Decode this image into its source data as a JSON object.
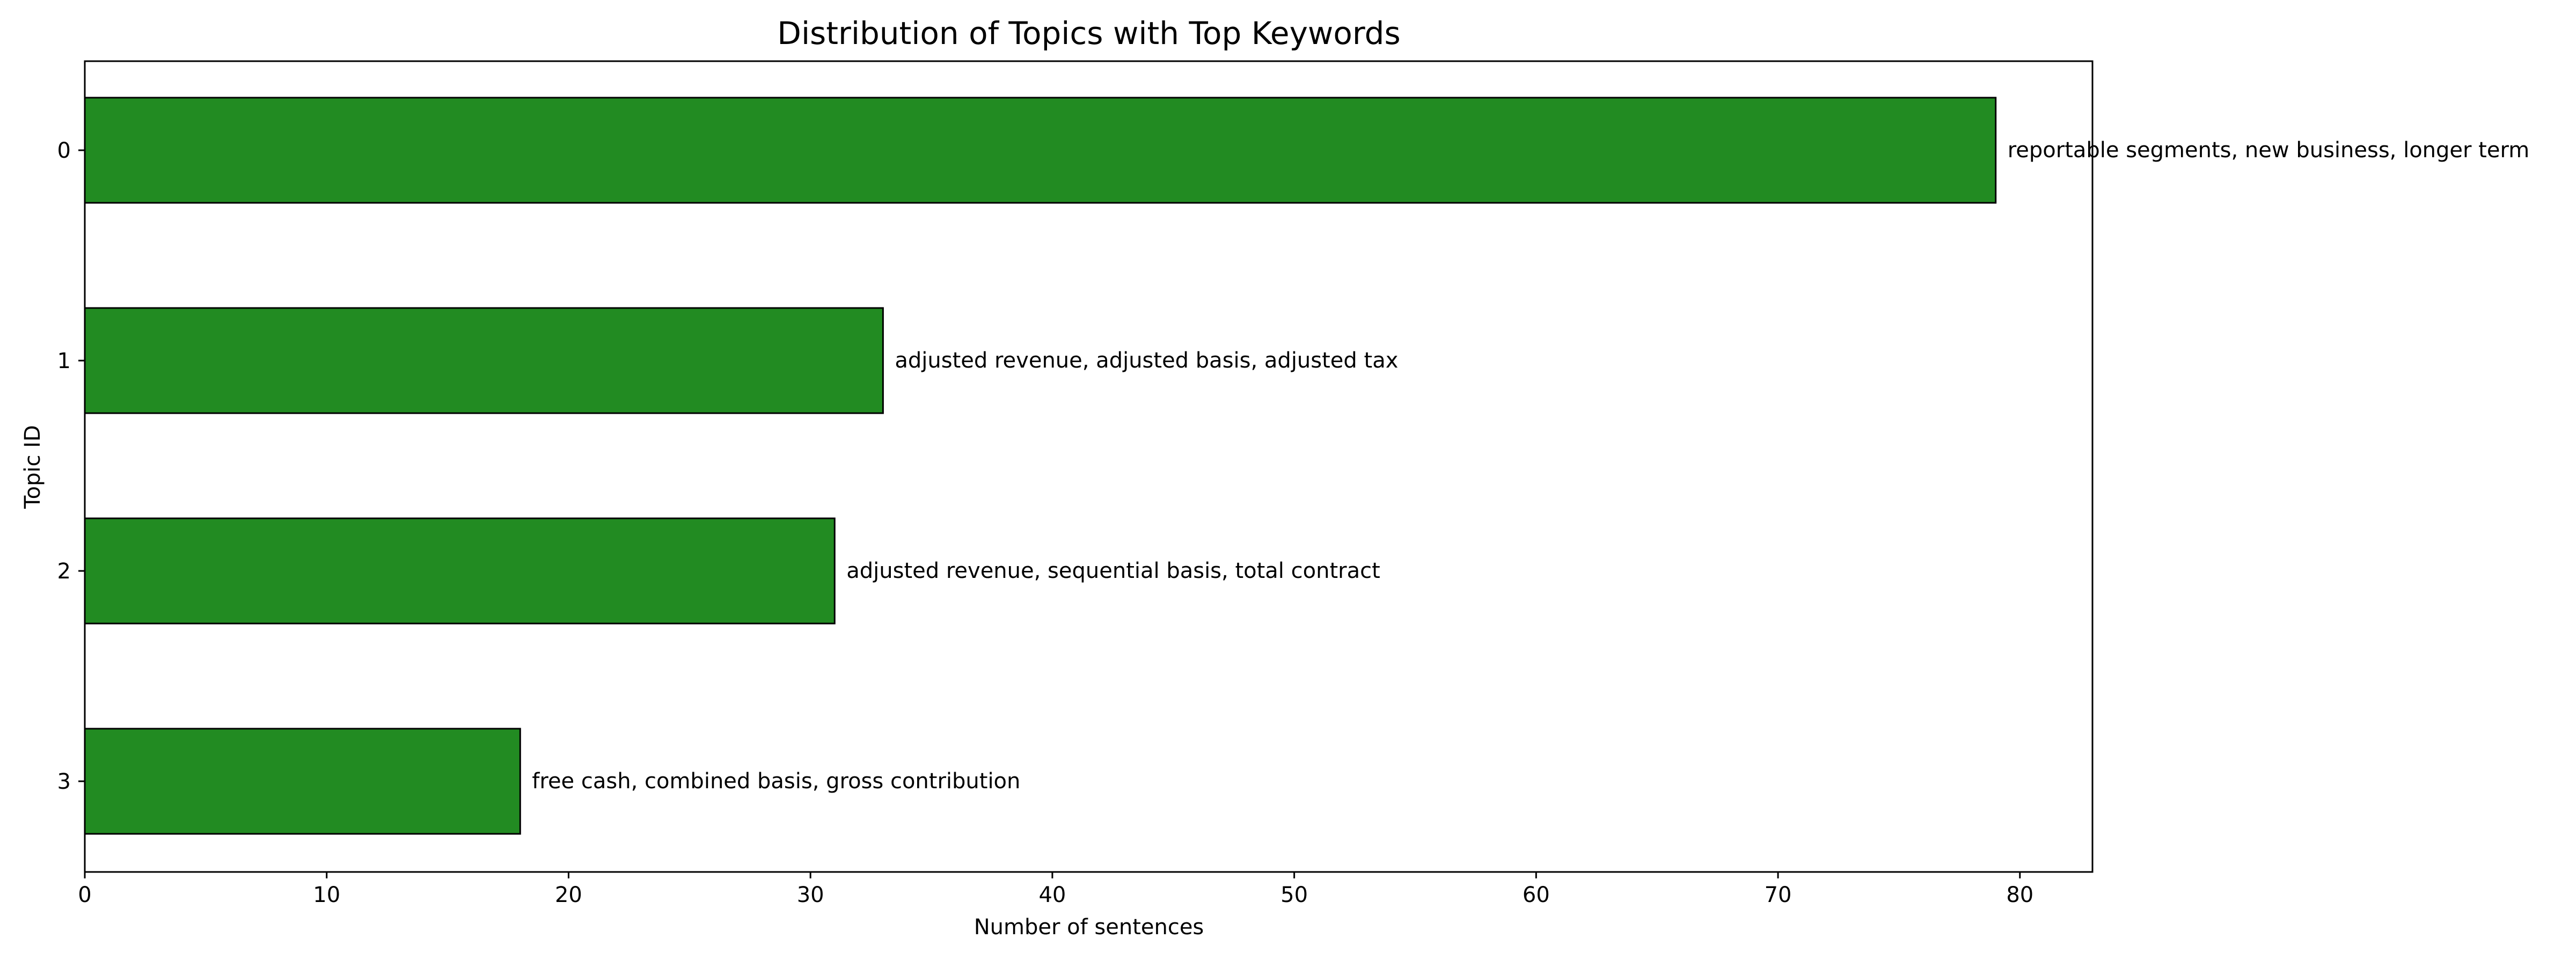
{
  "chart_data": {
    "type": "bar",
    "orientation": "horizontal",
    "title": "Distribution of Topics with Top Keywords",
    "xlabel": "Number of sentences",
    "ylabel": "Topic ID",
    "categories": [
      "0",
      "1",
      "2",
      "3"
    ],
    "values": [
      79,
      33,
      31,
      18
    ],
    "bar_labels": [
      "reportable segments, new business, longer term",
      "adjusted revenue, adjusted basis, adjusted tax",
      "adjusted revenue, sequential basis, total contract",
      "free cash, combined basis, gross contribution"
    ],
    "xlim": [
      0,
      83
    ],
    "xticks": [
      0,
      10,
      20,
      30,
      40,
      50,
      60,
      70,
      80
    ],
    "grid": false,
    "legend": "none",
    "bar_color": "#228b22",
    "bar_edge_color": "#000000"
  }
}
